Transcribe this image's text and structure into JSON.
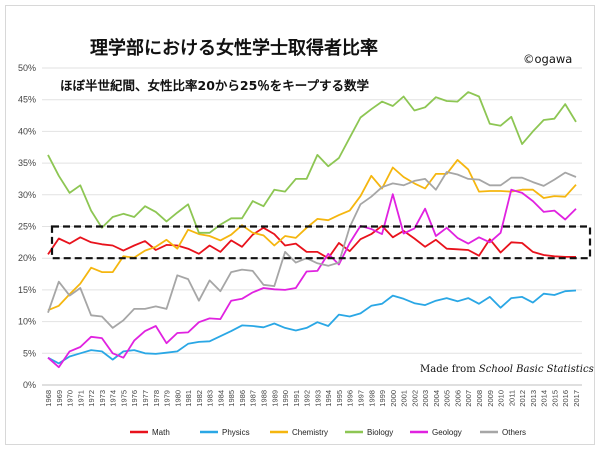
{
  "header": {
    "title": "理学部における女性学士取得者比率",
    "subtitle": "ほぼ半世紀間、女性比率20から25％をキープする数学",
    "credit": "©ogawa",
    "source_prefix": "Made from ",
    "source_italic": "School Basic Statistics"
  },
  "chart_data": {
    "type": "line",
    "title": "理学部における女性学士取得者比率",
    "xlabel": "",
    "ylabel": "",
    "ylim": [
      0,
      50
    ],
    "y_ticks": [
      "0%",
      "5%",
      "10%",
      "15%",
      "20%",
      "25%",
      "30%",
      "35%",
      "40%",
      "45%",
      "50%"
    ],
    "grid": "horizontal",
    "legend": "bottom",
    "highlight_band": [
      20,
      25
    ],
    "x": [
      1968,
      1969,
      1970,
      1971,
      1972,
      1973,
      1974,
      1975,
      1976,
      1977,
      1978,
      1979,
      1980,
      1981,
      1982,
      1983,
      1984,
      1985,
      1986,
      1987,
      1988,
      1989,
      1990,
      1991,
      1992,
      1993,
      1994,
      1995,
      1996,
      1997,
      1998,
      1999,
      2000,
      2001,
      2002,
      2003,
      2004,
      2005,
      2006,
      2007,
      2008,
      2009,
      2010,
      2011,
      2012,
      2013,
      2014,
      2015,
      2016,
      2017
    ],
    "series": [
      {
        "name": "Math",
        "color": "#e8121c",
        "values": [
          20.6,
          23.1,
          22.3,
          23.3,
          22.5,
          22.2,
          22.0,
          21.2,
          22.0,
          22.7,
          21.3,
          22.1,
          22.0,
          21.5,
          20.7,
          22.0,
          21.0,
          22.8,
          21.8,
          23.7,
          24.8,
          23.8,
          22.0,
          22.3,
          21.0,
          21.0,
          20.0,
          22.4,
          21.1,
          23.0,
          23.8,
          25.1,
          23.3,
          24.3,
          23.1,
          21.8,
          22.9,
          21.5,
          21.4,
          21.3,
          20.4,
          23.0,
          20.9,
          22.5,
          22.4,
          21.0,
          20.5,
          20.3,
          20.2,
          20.2
        ]
      },
      {
        "name": "Physics",
        "color": "#2aa7e5",
        "values": [
          4.3,
          3.4,
          4.5,
          5.0,
          5.5,
          5.3,
          4.0,
          5.3,
          5.5,
          5.0,
          4.9,
          5.1,
          5.3,
          6.5,
          6.8,
          6.9,
          7.7,
          8.5,
          9.4,
          9.3,
          9.1,
          9.7,
          9.0,
          8.6,
          9.0,
          9.9,
          9.3,
          11.1,
          10.8,
          11.3,
          12.5,
          12.8,
          14.1,
          13.6,
          12.9,
          12.6,
          13.3,
          13.7,
          13.2,
          13.7,
          12.8,
          13.9,
          12.2,
          13.7,
          13.9,
          13.0,
          14.4,
          14.2,
          14.8,
          14.9
        ]
      },
      {
        "name": "Chemistry",
        "color": "#f5b60f",
        "values": [
          11.8,
          12.5,
          14.3,
          16.0,
          18.5,
          17.8,
          17.8,
          20.3,
          20.1,
          21.2,
          21.8,
          22.9,
          21.5,
          24.5,
          23.8,
          23.5,
          22.8,
          23.7,
          25.2,
          24.0,
          23.6,
          22.0,
          23.5,
          23.2,
          24.8,
          26.2,
          26.0,
          26.8,
          27.5,
          29.8,
          33.0,
          31.0,
          34.3,
          32.8,
          31.8,
          31.0,
          33.3,
          33.3,
          35.5,
          34.0,
          30.5,
          30.6,
          30.6,
          30.5,
          30.8,
          30.8,
          29.5,
          29.8,
          29.7,
          31.6
        ]
      },
      {
        "name": "Biology",
        "color": "#8dc653",
        "values": [
          36.3,
          33.0,
          30.3,
          31.5,
          27.5,
          24.8,
          26.5,
          27.0,
          26.5,
          28.2,
          27.3,
          25.8,
          27.2,
          28.5,
          24.0,
          24.0,
          25.3,
          26.3,
          26.3,
          29.0,
          28.2,
          30.8,
          30.5,
          32.5,
          32.5,
          36.3,
          34.5,
          35.8,
          39.0,
          42.2,
          43.5,
          44.7,
          44.0,
          45.5,
          43.3,
          43.8,
          45.4,
          44.8,
          44.7,
          46.2,
          45.5,
          41.2,
          40.9,
          42.3,
          38.0,
          40.0,
          41.8,
          42.0,
          44.3,
          41.5
        ]
      },
      {
        "name": "Geology",
        "color": "#e022e0",
        "values": [
          4.3,
          2.8,
          5.3,
          6.0,
          7.6,
          7.4,
          5.0,
          4.3,
          7.0,
          8.5,
          9.3,
          6.6,
          8.2,
          8.3,
          9.9,
          10.5,
          10.4,
          13.3,
          13.6,
          14.6,
          15.3,
          15.1,
          15.0,
          15.3,
          17.9,
          18.0,
          20.7,
          19.0,
          22.4,
          25.1,
          24.6,
          23.8,
          30.1,
          23.9,
          24.7,
          27.8,
          23.5,
          24.8,
          23.2,
          22.3,
          23.3,
          22.5,
          24.0,
          30.8,
          30.3,
          29.0,
          27.3,
          27.5,
          26.1,
          27.8
        ]
      },
      {
        "name": "Others",
        "color": "#a6a6a6",
        "values": [
          11.4,
          16.3,
          14.1,
          15.3,
          11.0,
          10.8,
          9.0,
          10.2,
          12.0,
          12.0,
          12.4,
          12.0,
          17.3,
          16.7,
          13.3,
          16.5,
          14.8,
          17.8,
          18.2,
          18.0,
          15.8,
          15.6,
          21.0,
          19.3,
          20.0,
          19.2,
          18.8,
          19.3,
          24.9,
          28.5,
          29.7,
          31.2,
          31.8,
          31.5,
          32.2,
          32.5,
          30.8,
          33.6,
          33.2,
          32.5,
          32.4,
          31.5,
          31.5,
          32.7,
          32.7,
          32.0,
          31.4,
          32.4,
          33.5,
          32.8
        ]
      }
    ]
  }
}
